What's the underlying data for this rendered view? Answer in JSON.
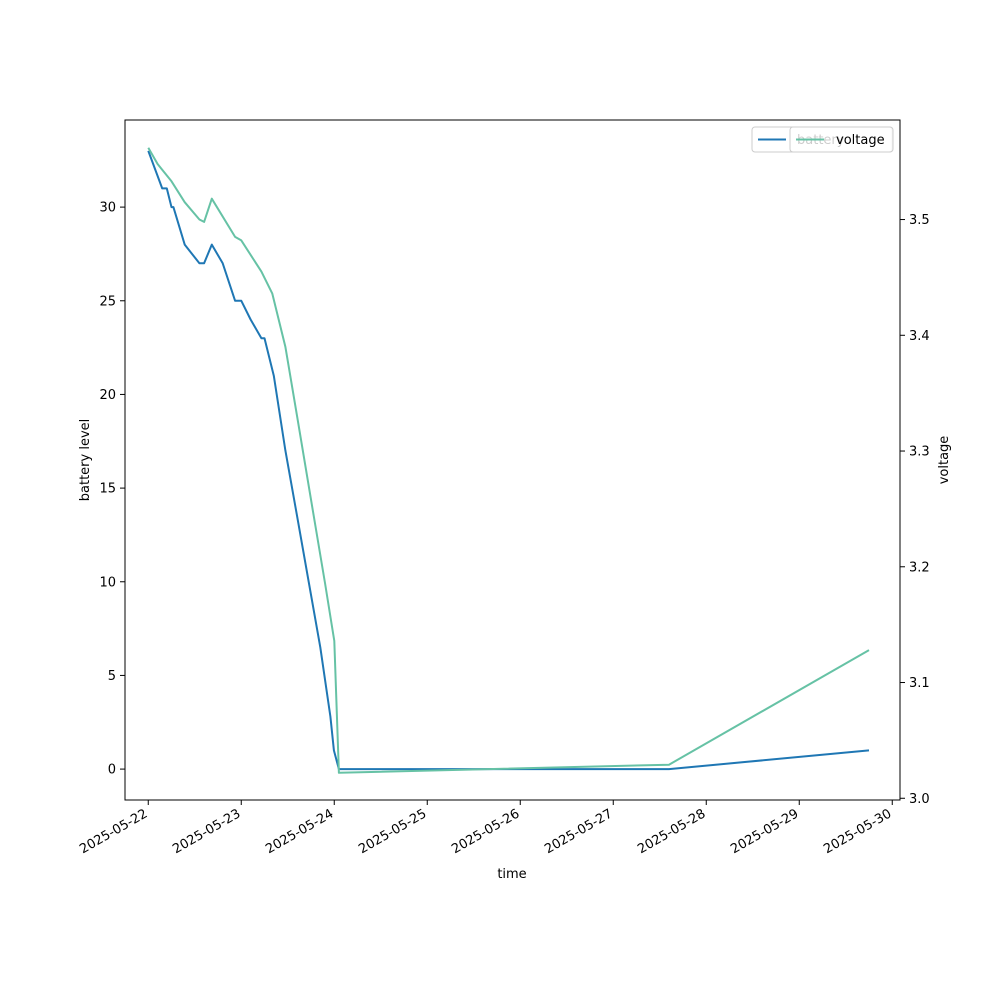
{
  "chart_data": {
    "type": "line",
    "title": "",
    "xlabel": "time",
    "ylabel": "battery level",
    "y2label": "voltage",
    "xlim": [
      "2025-05-21T18:00",
      "2025-05-30T02:00"
    ],
    "ylim": [
      -1.65,
      34.65
    ],
    "y2lim": [
      2.9985,
      3.586
    ],
    "x_ticks": [
      "2025-05-22",
      "2025-05-23",
      "2025-05-24",
      "2025-05-25",
      "2025-05-26",
      "2025-05-27",
      "2025-05-28",
      "2025-05-29",
      "2025-05-30"
    ],
    "y_ticks": [
      0,
      5,
      10,
      15,
      20,
      25,
      30
    ],
    "y2_ticks": [
      3.0,
      3.1,
      3.2,
      3.3,
      3.4,
      3.5
    ],
    "grid": false,
    "legend": {
      "position": "top-right",
      "entries": [
        "battery",
        "voltage"
      ]
    },
    "series": [
      {
        "name": "battery",
        "axis": "left",
        "color": "#1f77b4",
        "points": [
          [
            "2025-05-22T00:00",
            33
          ],
          [
            "2025-05-22T03:36",
            31
          ],
          [
            "2025-05-22T04:48",
            31
          ],
          [
            "2025-05-22T06:00",
            30
          ],
          [
            "2025-05-22T06:30",
            30
          ],
          [
            "2025-05-22T09:24",
            28
          ],
          [
            "2025-05-22T13:12",
            27
          ],
          [
            "2025-05-22T14:24",
            27
          ],
          [
            "2025-05-22T16:24",
            28
          ],
          [
            "2025-05-22T19:12",
            27
          ],
          [
            "2025-05-22T22:24",
            25
          ],
          [
            "2025-05-23T00:00",
            25
          ],
          [
            "2025-05-23T02:24",
            24
          ],
          [
            "2025-05-23T05:12",
            23
          ],
          [
            "2025-05-23T06:00",
            23
          ],
          [
            "2025-05-23T08:24",
            21
          ],
          [
            "2025-05-23T11:24",
            17
          ],
          [
            "2025-05-23T14:24",
            13.5
          ],
          [
            "2025-05-23T17:24",
            10
          ],
          [
            "2025-05-23T20:24",
            6.5
          ],
          [
            "2025-05-23T23:00",
            2.8
          ],
          [
            "2025-05-23T23:54",
            1
          ],
          [
            "2025-05-24T01:12",
            0
          ],
          [
            "2025-05-27T14:24",
            0
          ],
          [
            "2025-05-29T18:00",
            1
          ]
        ]
      },
      {
        "name": "voltage",
        "axis": "right",
        "color": "#66c2a5",
        "points": [
          [
            "2025-05-22T00:00",
            3.562
          ],
          [
            "2025-05-22T02:24",
            3.548
          ],
          [
            "2025-05-22T03:36",
            3.543
          ],
          [
            "2025-05-22T06:00",
            3.533
          ],
          [
            "2025-05-22T09:24",
            3.515
          ],
          [
            "2025-05-22T13:12",
            3.5
          ],
          [
            "2025-05-22T14:24",
            3.498
          ],
          [
            "2025-05-22T16:24",
            3.518
          ],
          [
            "2025-05-22T22:24",
            3.485
          ],
          [
            "2025-05-23T00:00",
            3.482
          ],
          [
            "2025-05-23T05:12",
            3.455
          ],
          [
            "2025-05-23T08:00",
            3.436
          ],
          [
            "2025-05-23T11:24",
            3.39
          ],
          [
            "2025-05-23T14:24",
            3.33
          ],
          [
            "2025-05-23T18:00",
            3.258
          ],
          [
            "2025-05-23T21:36",
            3.186
          ],
          [
            "2025-05-24T00:00",
            3.136
          ],
          [
            "2025-05-24T01:12",
            3.022
          ],
          [
            "2025-05-27T14:24",
            3.029
          ],
          [
            "2025-05-29T18:00",
            3.128
          ]
        ]
      }
    ]
  }
}
